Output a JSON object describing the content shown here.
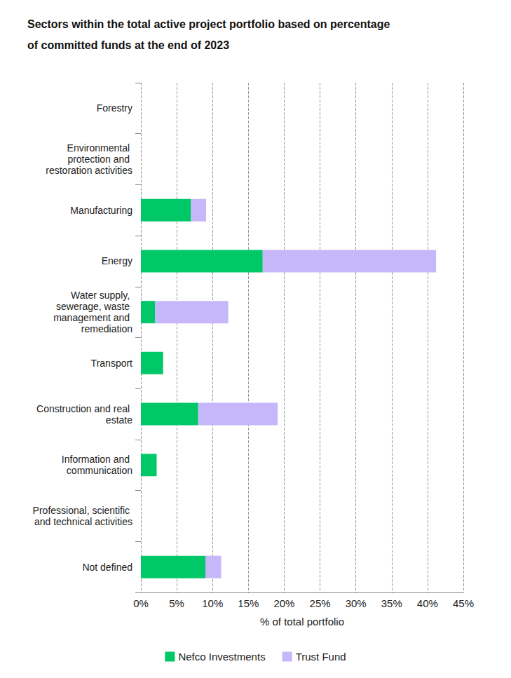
{
  "chart_data": {
    "type": "bar",
    "title": "Sectors within the total active project portfolio based on percentage of committed funds at the end of 2023",
    "xlabel": "% of total portfolio",
    "orientation": "horizontal",
    "stacked": true,
    "grid": true,
    "legend": "bottom",
    "categories": [
      "Forestry",
      "Environmental protection and restoration activities",
      "Manufacturing",
      "Energy",
      "Water supply, sewerage, waste management and remediation",
      "Transport",
      "Construction and real estate",
      "Information and communication",
      "Professional, scientific and technical activities",
      "Not defined"
    ],
    "series": [
      {
        "name": "Nefco Investments",
        "color": "#00c767",
        "values": [
          0,
          0,
          7.0,
          17.0,
          2.0,
          3.1,
          8.0,
          2.2,
          0,
          9.0
        ]
      },
      {
        "name": "Trust Fund",
        "color": "#c6b7fb",
        "values": [
          0,
          0,
          2.1,
          24.2,
          10.2,
          0,
          11.1,
          0,
          0,
          2.2
        ]
      }
    ],
    "xlim": [
      0,
      45
    ],
    "xticks": [
      {
        "value": 0,
        "label": "0%"
      },
      {
        "value": 5,
        "label": "5%"
      },
      {
        "value": 10,
        "label": "10%"
      },
      {
        "value": 15,
        "label": "15%"
      },
      {
        "value": 20,
        "label": "20%"
      },
      {
        "value": 25,
        "label": "25%"
      },
      {
        "value": 30,
        "label": "30%"
      },
      {
        "value": 35,
        "label": "35%"
      },
      {
        "value": 40,
        "label": "40%"
      },
      {
        "value": 45,
        "label": "45%"
      }
    ]
  }
}
